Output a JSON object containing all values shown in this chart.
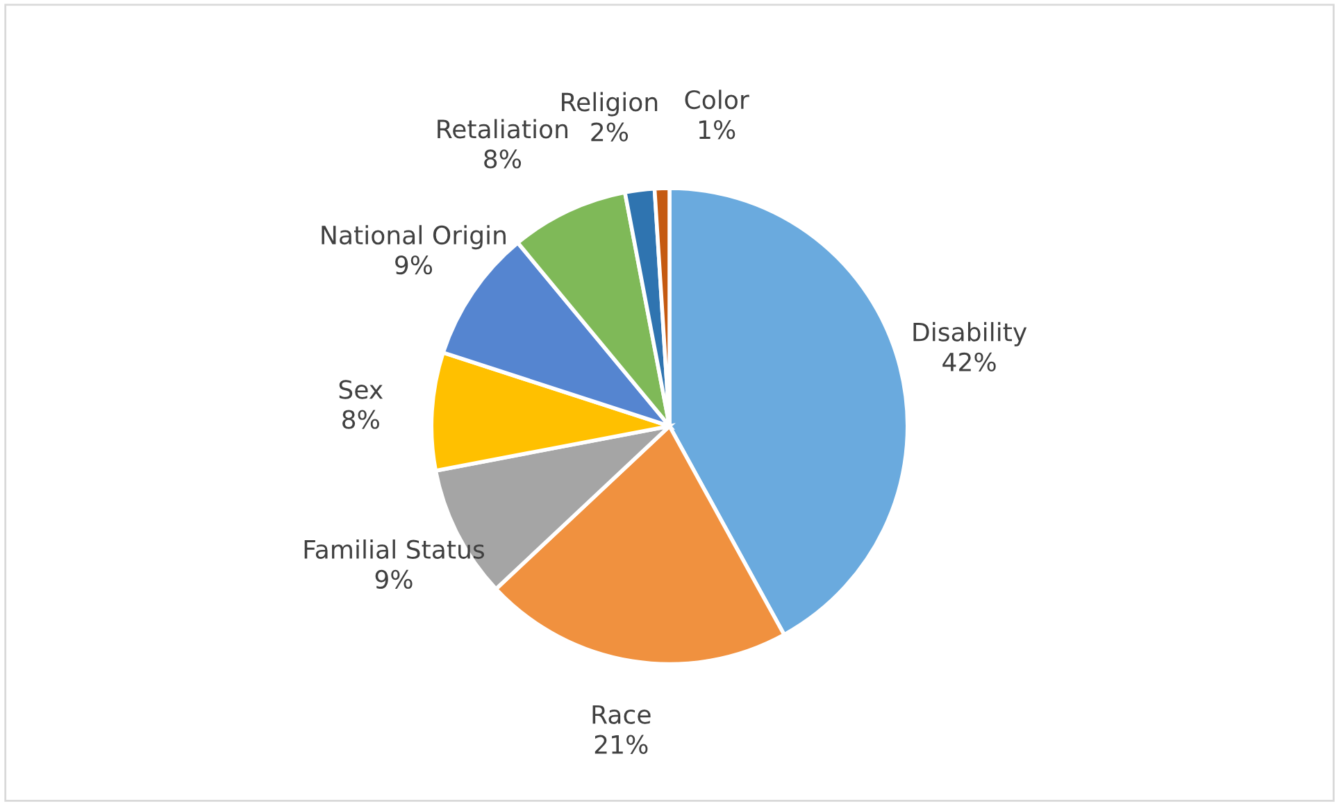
{
  "chart_data": {
    "type": "pie",
    "categories": [
      "Disability",
      "Race",
      "Familial Status",
      "Sex",
      "National Origin",
      "Retaliation",
      "Religion",
      "Color"
    ],
    "values": [
      42,
      21,
      9,
      8,
      9,
      8,
      2,
      1
    ],
    "value_labels": [
      "42%",
      "21%",
      "9%",
      "8%",
      "9%",
      "8%",
      "2%",
      "1%"
    ],
    "colors": [
      "#6aaade",
      "#f0913f",
      "#a5a5a5",
      "#ffc000",
      "#5585d0",
      "#7fb958",
      "#2f74b0",
      "#c55a11"
    ],
    "legend": false
  }
}
